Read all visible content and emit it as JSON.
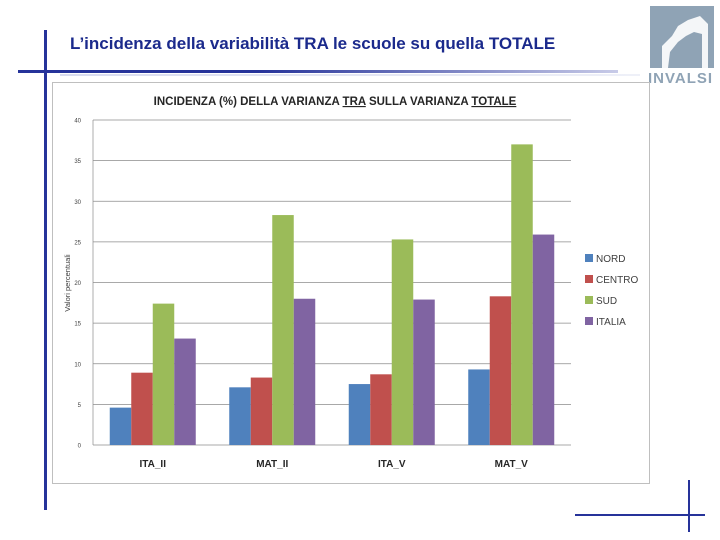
{
  "slide": {
    "title": "L’incidenza della variabilità TRA le scuole su quella TOTALE",
    "logo_text": "INVALSI"
  },
  "colors": {
    "accent_line": "#26339a",
    "title": "#1b2a8c"
  },
  "chart_data": {
    "type": "bar",
    "title_parts": [
      "INCIDENZA (%) DELLA VARIANZA ",
      "TRA",
      " SULLA VARIANZA ",
      "TOTALE"
    ],
    "ylabel": "Valori percentuali",
    "xlabel": "",
    "categories": [
      "ITA_II",
      "MAT_II",
      "ITA_V",
      "MAT_V"
    ],
    "ylim": [
      0,
      40
    ],
    "yticks": [
      0,
      5,
      10,
      15,
      20,
      25,
      30,
      35,
      40
    ],
    "grid": true,
    "legend_position": "right",
    "series": [
      {
        "name": "NORD",
        "color": "#4f81bd",
        "values": [
          4.6,
          7.1,
          7.5,
          9.3
        ]
      },
      {
        "name": "CENTRO",
        "color": "#c0504d",
        "values": [
          8.9,
          8.3,
          8.7,
          18.3
        ]
      },
      {
        "name": "SUD",
        "color": "#9bbb59",
        "values": [
          17.4,
          28.3,
          25.3,
          37.0
        ]
      },
      {
        "name": "ITALIA",
        "color": "#8064a2",
        "values": [
          13.1,
          18.0,
          17.9,
          25.9
        ]
      }
    ]
  }
}
